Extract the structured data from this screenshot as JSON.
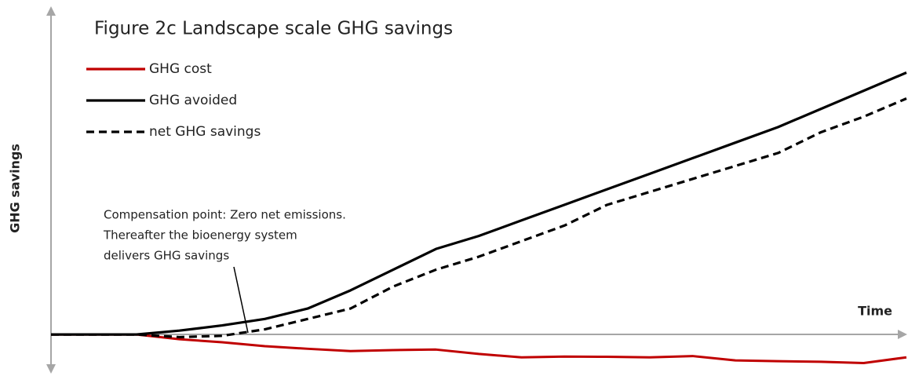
{
  "chart_data": {
    "type": "line",
    "title": "Figure 2c Landscape scale GHG savings",
    "x_label": "Time",
    "y_label": "GHG savings",
    "annotation": [
      "Compensation point: Zero net emissions.",
      "Thereafter the bioenergy system",
      "delivers GHG savings"
    ],
    "x": [
      0,
      10,
      15,
      20,
      25,
      30,
      35,
      40,
      45,
      50,
      55,
      60,
      65,
      70,
      75,
      80,
      85,
      90,
      95,
      100
    ],
    "xlim": [
      0,
      100
    ],
    "ylim": [
      -16,
      129
    ],
    "series": [
      {
        "name": "GHG cost",
        "color": "#c00000",
        "style": "solid",
        "values": [
          0,
          0,
          -1.8,
          -3,
          -4.5,
          -5.5,
          -6.4,
          -6,
          -5.8,
          -7.5,
          -8.8,
          -8.5,
          -8.6,
          -8.8,
          -8.3,
          -10,
          -10.3,
          -10.5,
          -11,
          -8.8
        ]
      },
      {
        "name": "GHG avoided",
        "color": "#000000",
        "style": "solid",
        "values": [
          0,
          0,
          1.5,
          3.5,
          6,
          10,
          17,
          25,
          33,
          38,
          44,
          50,
          56,
          62,
          68,
          74,
          80,
          87,
          94,
          101
        ]
      },
      {
        "name": "net GHG savings",
        "color": "#000000",
        "style": "dashed",
        "values": [
          0,
          0,
          -1,
          -0.5,
          2,
          6,
          10,
          18.5,
          25,
          30,
          36,
          42,
          50,
          55,
          60,
          65,
          70,
          78,
          84,
          91
        ]
      }
    ]
  }
}
